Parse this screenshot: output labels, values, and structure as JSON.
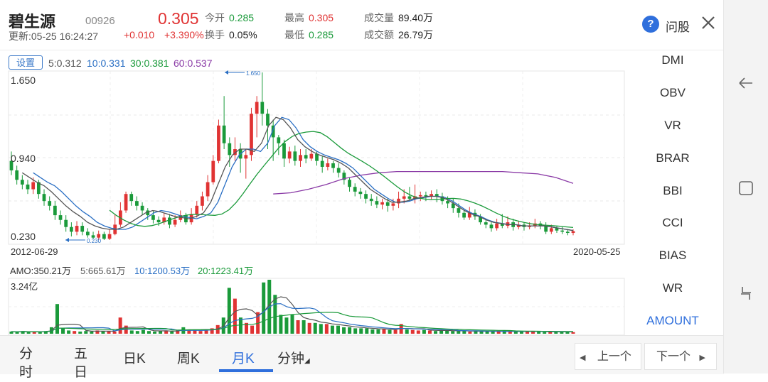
{
  "header": {
    "name": "碧生源",
    "code": "00926",
    "updated": "更新:05-25 16:24:27",
    "price": "0.305",
    "change": "+0.010",
    "change_pct": "+3.390%",
    "open_label": "今开",
    "open_value": "0.285",
    "turnover_label": "换手",
    "turnover_value": "0.05%",
    "high_label": "最高",
    "high_value": "0.305",
    "low_label": "最低",
    "low_value": "0.285",
    "volume_label": "成交量",
    "volume_value": "89.40万",
    "amount_label": "成交额",
    "amount_value": "26.79万",
    "help_icon": "?",
    "help_label": "问股",
    "colors": {
      "up": "#e03333",
      "down": "#1a9a3a",
      "accent": "#2f6fdc"
    }
  },
  "chart": {
    "settings_label": "设置",
    "ma5": "5:0.312",
    "ma10": "10:0.331",
    "ma30": "30:0.381",
    "ma60": "60:0.537",
    "y_top": "1.650",
    "y_mid": "0.940",
    "y_bottom": "0.230",
    "date_start": "2012-06-29",
    "date_end": "2020-05-25",
    "max_marker": "1.650",
    "min_marker": "0.230"
  },
  "volume": {
    "amo": "AMO:350.21万",
    "ma5": "5:665.61万",
    "ma10": "10:1200.53万",
    "ma20": "20:1223.41万",
    "y_top": "3.24亿"
  },
  "indicators": [
    "DMI",
    "OBV",
    "VR",
    "BRAR",
    "BBI",
    "CCI",
    "BIAS",
    "WR",
    "AMOUNT"
  ],
  "active_indicator": "AMOUNT",
  "tabs": {
    "fenshi": "分时",
    "wuri": "五日",
    "rik": "日K",
    "zhouk": "周K",
    "yuek": "月K",
    "fenzhong": "分钟"
  },
  "pager": {
    "prev": "上一个",
    "next": "下一个"
  },
  "chart_data": {
    "type": "candlestick",
    "title": "",
    "x_range": [
      "2012-06-29",
      "2020-05-25"
    ],
    "y_range": [
      0.23,
      1.65
    ],
    "max_label": 1.65,
    "min_label": 0.23,
    "candles": [
      [
        0.9,
        0.82,
        0.98,
        0.78
      ],
      [
        0.82,
        0.74,
        0.86,
        0.7
      ],
      [
        0.74,
        0.7,
        0.78,
        0.66
      ],
      [
        0.7,
        0.66,
        0.74,
        0.62
      ],
      [
        0.66,
        0.72,
        0.76,
        0.62
      ],
      [
        0.72,
        0.62,
        0.74,
        0.58
      ],
      [
        0.62,
        0.56,
        0.66,
        0.52
      ],
      [
        0.56,
        0.52,
        0.6,
        0.48
      ],
      [
        0.52,
        0.44,
        0.56,
        0.4
      ],
      [
        0.44,
        0.4,
        0.48,
        0.36
      ],
      [
        0.4,
        0.34,
        0.44,
        0.3
      ],
      [
        0.34,
        0.3,
        0.38,
        0.26
      ],
      [
        0.3,
        0.35,
        0.39,
        0.27
      ],
      [
        0.35,
        0.3,
        0.38,
        0.27
      ],
      [
        0.3,
        0.27,
        0.33,
        0.25
      ],
      [
        0.27,
        0.25,
        0.3,
        0.24
      ],
      [
        0.25,
        0.28,
        0.31,
        0.23
      ],
      [
        0.28,
        0.24,
        0.3,
        0.23
      ],
      [
        0.24,
        0.28,
        0.32,
        0.23
      ],
      [
        0.28,
        0.36,
        0.45,
        0.27
      ],
      [
        0.36,
        0.48,
        0.55,
        0.34
      ],
      [
        0.48,
        0.62,
        0.64,
        0.46
      ],
      [
        0.62,
        0.56,
        0.64,
        0.52
      ],
      [
        0.56,
        0.52,
        0.6,
        0.48
      ],
      [
        0.52,
        0.48,
        0.55,
        0.44
      ],
      [
        0.48,
        0.44,
        0.5,
        0.4
      ],
      [
        0.44,
        0.4,
        0.48,
        0.37
      ],
      [
        0.4,
        0.38,
        0.43,
        0.35
      ],
      [
        0.38,
        0.42,
        0.46,
        0.36
      ],
      [
        0.42,
        0.36,
        0.45,
        0.33
      ],
      [
        0.36,
        0.4,
        0.44,
        0.34
      ],
      [
        0.4,
        0.44,
        0.48,
        0.38
      ],
      [
        0.44,
        0.38,
        0.46,
        0.36
      ],
      [
        0.38,
        0.45,
        0.5,
        0.36
      ],
      [
        0.45,
        0.52,
        0.56,
        0.42
      ],
      [
        0.52,
        0.6,
        0.64,
        0.48
      ],
      [
        0.6,
        0.72,
        0.78,
        0.56
      ],
      [
        0.72,
        0.9,
        0.95,
        0.7
      ],
      [
        0.9,
        1.2,
        1.25,
        0.88
      ],
      [
        1.2,
        1.05,
        1.45,
        1.0
      ],
      [
        1.05,
        0.95,
        1.1,
        0.85
      ],
      [
        0.95,
        1.0,
        1.1,
        0.9
      ],
      [
        1.0,
        0.92,
        1.05,
        0.8
      ],
      [
        0.92,
        0.95,
        1.0,
        0.75
      ],
      [
        0.95,
        1.3,
        1.35,
        0.9
      ],
      [
        1.3,
        1.4,
        1.45,
        1.1
      ],
      [
        1.4,
        1.3,
        1.65,
        1.2
      ],
      [
        1.3,
        1.2,
        1.34,
        1.0
      ],
      [
        1.2,
        1.1,
        1.25,
        0.9
      ],
      [
        1.1,
        1.05,
        1.12,
        0.95
      ],
      [
        1.05,
        0.92,
        1.08,
        0.85
      ],
      [
        0.92,
        0.98,
        1.02,
        0.88
      ],
      [
        0.98,
        0.9,
        1.03,
        0.86
      ],
      [
        0.9,
        0.95,
        1.0,
        0.85
      ],
      [
        0.95,
        0.92,
        1.0,
        0.88
      ],
      [
        0.92,
        0.96,
        1.0,
        0.9
      ],
      [
        0.96,
        0.9,
        0.98,
        0.86
      ],
      [
        0.9,
        0.85,
        0.94,
        0.8
      ],
      [
        0.85,
        0.88,
        0.92,
        0.82
      ],
      [
        0.88,
        0.84,
        0.9,
        0.8
      ],
      [
        0.84,
        0.8,
        0.88,
        0.76
      ],
      [
        0.8,
        0.74,
        0.82,
        0.7
      ],
      [
        0.74,
        0.68,
        0.76,
        0.64
      ],
      [
        0.68,
        0.64,
        0.71,
        0.6
      ],
      [
        0.64,
        0.62,
        0.67,
        0.58
      ],
      [
        0.62,
        0.58,
        0.65,
        0.54
      ],
      [
        0.58,
        0.56,
        0.62,
        0.52
      ],
      [
        0.56,
        0.53,
        0.6,
        0.5
      ],
      [
        0.53,
        0.55,
        0.58,
        0.49
      ],
      [
        0.55,
        0.52,
        0.58,
        0.47
      ],
      [
        0.52,
        0.54,
        0.58,
        0.48
      ],
      [
        0.54,
        0.58,
        0.64,
        0.5
      ],
      [
        0.58,
        0.6,
        0.66,
        0.54
      ],
      [
        0.6,
        0.58,
        0.68,
        0.56
      ],
      [
        0.58,
        0.6,
        0.7,
        0.54
      ],
      [
        0.6,
        0.61,
        0.64,
        0.56
      ],
      [
        0.61,
        0.6,
        0.64,
        0.56
      ],
      [
        0.6,
        0.62,
        0.65,
        0.57
      ],
      [
        0.62,
        0.6,
        0.66,
        0.55
      ],
      [
        0.6,
        0.56,
        0.63,
        0.53
      ],
      [
        0.56,
        0.54,
        0.6,
        0.5
      ],
      [
        0.54,
        0.5,
        0.58,
        0.46
      ],
      [
        0.5,
        0.46,
        0.54,
        0.42
      ],
      [
        0.46,
        0.42,
        0.48,
        0.4
      ],
      [
        0.42,
        0.46,
        0.51,
        0.4
      ],
      [
        0.46,
        0.43,
        0.49,
        0.4
      ],
      [
        0.43,
        0.38,
        0.45,
        0.36
      ],
      [
        0.38,
        0.36,
        0.4,
        0.33
      ],
      [
        0.36,
        0.33,
        0.38,
        0.3
      ],
      [
        0.33,
        0.37,
        0.41,
        0.31
      ],
      [
        0.37,
        0.35,
        0.45,
        0.33
      ],
      [
        0.35,
        0.38,
        0.43,
        0.33
      ],
      [
        0.38,
        0.34,
        0.41,
        0.31
      ],
      [
        0.34,
        0.36,
        0.39,
        0.32
      ],
      [
        0.36,
        0.34,
        0.38,
        0.31
      ],
      [
        0.34,
        0.35,
        0.38,
        0.32
      ],
      [
        0.35,
        0.37,
        0.41,
        0.33
      ],
      [
        0.37,
        0.35,
        0.39,
        0.32
      ],
      [
        0.35,
        0.3,
        0.38,
        0.28
      ],
      [
        0.3,
        0.33,
        0.36,
        0.28
      ],
      [
        0.33,
        0.31,
        0.35,
        0.29
      ],
      [
        0.31,
        0.3,
        0.34,
        0.28
      ],
      [
        0.3,
        0.29,
        0.32,
        0.27
      ],
      [
        0.29,
        0.305,
        0.32,
        0.27
      ]
    ],
    "ma5": [
      0.8,
      0.76,
      0.72,
      0.69,
      0.64,
      0.58,
      0.52,
      0.47,
      0.43,
      0.38,
      0.35,
      0.33,
      0.32,
      0.32,
      0.34,
      0.38,
      0.42,
      0.46,
      0.48,
      0.47,
      0.45,
      0.43,
      0.42,
      0.41,
      0.43,
      0.46,
      0.55,
      0.7,
      0.85,
      0.95,
      1.0,
      1.0,
      0.98,
      1.05,
      1.2,
      1.27,
      1.25,
      1.18,
      1.08,
      1.02,
      0.98,
      0.95,
      0.93,
      0.91,
      0.88,
      0.84,
      0.78,
      0.72,
      0.66,
      0.62,
      0.58,
      0.55,
      0.55,
      0.56,
      0.58,
      0.59,
      0.6,
      0.6,
      0.59,
      0.56,
      0.52,
      0.48,
      0.45,
      0.43,
      0.4,
      0.38,
      0.37,
      0.36,
      0.36,
      0.35,
      0.35,
      0.35,
      0.35,
      0.34,
      0.33,
      0.32,
      0.31
    ],
    "ma60": [
      0.62,
      0.63,
      0.66,
      0.7,
      0.75,
      0.78,
      0.8,
      0.81,
      0.81,
      0.81,
      0.81,
      0.81,
      0.81,
      0.81,
      0.8,
      0.79,
      0.76,
      0.71
    ]
  },
  "volume_data": {
    "type": "bar",
    "max": "3.24亿",
    "values": [
      0.04,
      0.03,
      0.05,
      0.03,
      0.04,
      0.03,
      0.05,
      0.12,
      0.55,
      0.1,
      0.06,
      0.05,
      0.04,
      0.05,
      0.04,
      0.06,
      0.05,
      0.04,
      0.04,
      0.3,
      0.15,
      0.06,
      0.05,
      0.07,
      0.05,
      0.04,
      0.05,
      0.06,
      0.04,
      0.06,
      0.12,
      0.08,
      0.06,
      0.05,
      0.08,
      0.1,
      0.16,
      0.3,
      0.85,
      0.65,
      0.3,
      0.2,
      0.15,
      0.4,
      0.95,
      1.0,
      0.72,
      0.35,
      0.3,
      0.35,
      0.25,
      0.25,
      0.2,
      0.2,
      0.18,
      0.18,
      0.15,
      0.15,
      0.12,
      0.12,
      0.1,
      0.1,
      0.1,
      0.08,
      0.08,
      0.09,
      0.07,
      0.07,
      0.18,
      0.08,
      0.07,
      0.06,
      0.07,
      0.06,
      0.05,
      0.06,
      0.06,
      0.05,
      0.05,
      0.05,
      0.04,
      0.05,
      0.04,
      0.04,
      0.05,
      0.04,
      0.04,
      0.04,
      0.04,
      0.05,
      0.04,
      0.04,
      0.04,
      0.03,
      0.04,
      0.03,
      0.04,
      0.03,
      0.03
    ]
  }
}
